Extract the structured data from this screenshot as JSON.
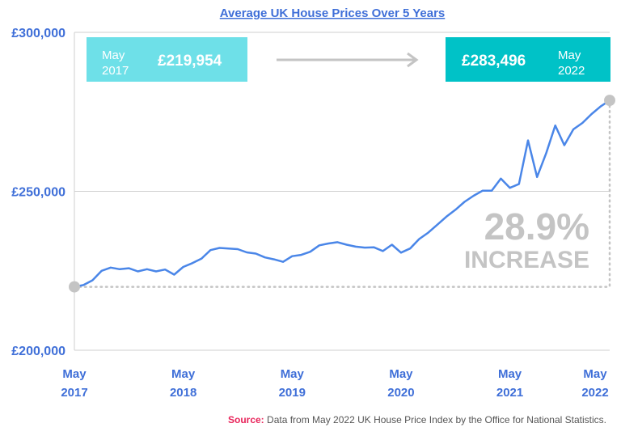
{
  "colors": {
    "accent": "#3f6fd8",
    "line": "#4a86e8",
    "box_start": "#6ee0e8",
    "box_end": "#00c2c7",
    "muted": "#c4c4c4",
    "source_label": "#e8245a"
  },
  "start_box": {
    "month": "May",
    "year": "2017",
    "value": "£219,954"
  },
  "end_box": {
    "value": "£283,496",
    "month": "May",
    "year": "2022"
  },
  "increase": {
    "percent": "28.9%",
    "label": "INCREASE"
  },
  "source": {
    "label": "Source:",
    "text": " Data from May 2022 UK House Price Index by the Office for National Statistics."
  },
  "chart_data": {
    "type": "line",
    "title": "Average UK House Prices Over 5 Years",
    "ylim": [
      200000,
      300000
    ],
    "y_ticks": [
      {
        "value": 300000,
        "label": "£300,000"
      },
      {
        "value": 250000,
        "label": "£250,000"
      },
      {
        "value": 200000,
        "label": "£200,000"
      }
    ],
    "x_ticks": [
      {
        "index": 0,
        "month": "May",
        "year": "2017"
      },
      {
        "index": 12,
        "month": "May",
        "year": "2018"
      },
      {
        "index": 24,
        "month": "May",
        "year": "2019"
      },
      {
        "index": 36,
        "month": "May",
        "year": "2020"
      },
      {
        "index": 48,
        "month": "May",
        "year": "2021"
      },
      {
        "index": 60,
        "month": "May",
        "year": "2022"
      }
    ],
    "grid": true,
    "series": [
      {
        "values": [
          219954,
          220500,
          222000,
          225000,
          226000,
          225500,
          225800,
          224800,
          225500,
          224800,
          225400,
          223800,
          226200,
          227400,
          228800,
          231500,
          232200,
          232000,
          231800,
          230800,
          230400,
          229200,
          228600,
          227800,
          229600,
          230000,
          231000,
          233000,
          233600,
          234000,
          233200,
          232600,
          232300,
          232400,
          231200,
          233200,
          230700,
          232000,
          235000,
          237000,
          239500,
          242000,
          244200,
          246700,
          248600,
          250200,
          250200,
          254000,
          251100,
          252300,
          266000,
          254500,
          262000,
          270700,
          264500,
          269500,
          271500,
          274300,
          276700,
          278600
        ]
      }
    ]
  }
}
